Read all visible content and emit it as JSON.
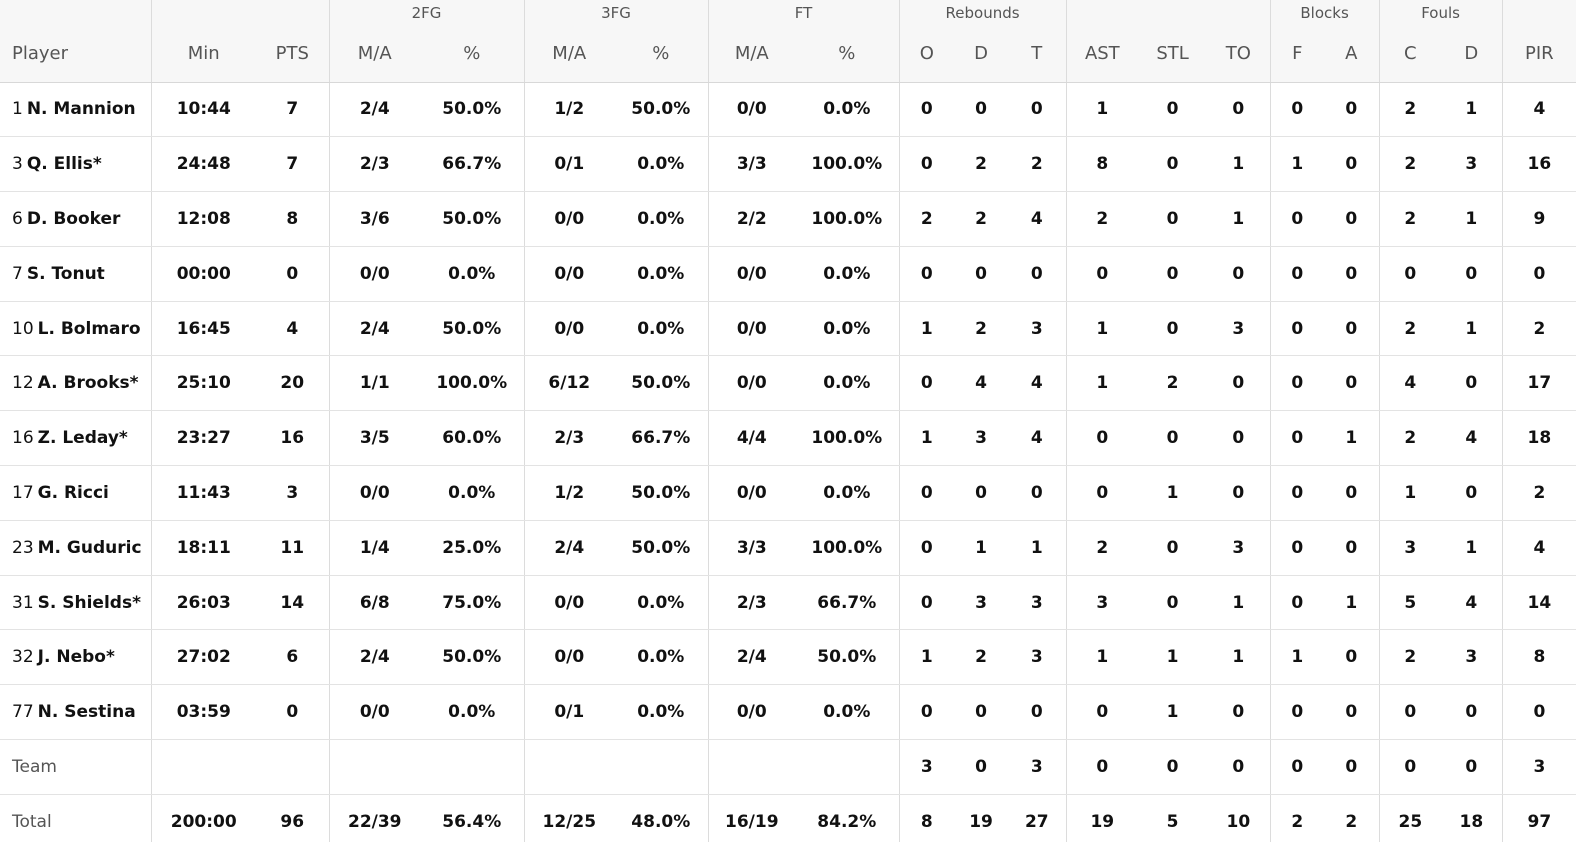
{
  "groups": {
    "twofg": "2FG",
    "threefg": "3FG",
    "ft": "FT",
    "rebounds": "Rebounds",
    "blocks": "Blocks",
    "fouls": "Fouls"
  },
  "columns": {
    "player": "Player",
    "min": "Min",
    "pts": "PTS",
    "twofg_ma": "M/A",
    "twofg_pct": "%",
    "threefg_ma": "M/A",
    "threefg_pct": "%",
    "ft_ma": "M/A",
    "ft_pct": "%",
    "reb_o": "O",
    "reb_d": "D",
    "reb_t": "T",
    "ast": "AST",
    "stl": "STL",
    "to": "TO",
    "blk_f": "F",
    "blk_a": "A",
    "fouls_c": "C",
    "fouls_d": "D",
    "pir": "PIR"
  },
  "players": [
    {
      "num": "1",
      "name": "N. Mannion",
      "min": "10:44",
      "pts": "7",
      "twofg_ma": "2/4",
      "twofg_pct": "50.0%",
      "threefg_ma": "1/2",
      "threefg_pct": "50.0%",
      "ft_ma": "0/0",
      "ft_pct": "0.0%",
      "reb_o": "0",
      "reb_d": "0",
      "reb_t": "0",
      "ast": "1",
      "stl": "0",
      "to": "0",
      "blk_f": "0",
      "blk_a": "0",
      "fouls_c": "2",
      "fouls_d": "1",
      "pir": "4"
    },
    {
      "num": "3",
      "name": "Q. Ellis*",
      "min": "24:48",
      "pts": "7",
      "twofg_ma": "2/3",
      "twofg_pct": "66.7%",
      "threefg_ma": "0/1",
      "threefg_pct": "0.0%",
      "ft_ma": "3/3",
      "ft_pct": "100.0%",
      "reb_o": "0",
      "reb_d": "2",
      "reb_t": "2",
      "ast": "8",
      "stl": "0",
      "to": "1",
      "blk_f": "1",
      "blk_a": "0",
      "fouls_c": "2",
      "fouls_d": "3",
      "pir": "16"
    },
    {
      "num": "6",
      "name": "D. Booker",
      "min": "12:08",
      "pts": "8",
      "twofg_ma": "3/6",
      "twofg_pct": "50.0%",
      "threefg_ma": "0/0",
      "threefg_pct": "0.0%",
      "ft_ma": "2/2",
      "ft_pct": "100.0%",
      "reb_o": "2",
      "reb_d": "2",
      "reb_t": "4",
      "ast": "2",
      "stl": "0",
      "to": "1",
      "blk_f": "0",
      "blk_a": "0",
      "fouls_c": "2",
      "fouls_d": "1",
      "pir": "9"
    },
    {
      "num": "7",
      "name": "S. Tonut",
      "min": "00:00",
      "pts": "0",
      "twofg_ma": "0/0",
      "twofg_pct": "0.0%",
      "threefg_ma": "0/0",
      "threefg_pct": "0.0%",
      "ft_ma": "0/0",
      "ft_pct": "0.0%",
      "reb_o": "0",
      "reb_d": "0",
      "reb_t": "0",
      "ast": "0",
      "stl": "0",
      "to": "0",
      "blk_f": "0",
      "blk_a": "0",
      "fouls_c": "0",
      "fouls_d": "0",
      "pir": "0"
    },
    {
      "num": "10",
      "name": "L. Bolmaro",
      "min": "16:45",
      "pts": "4",
      "twofg_ma": "2/4",
      "twofg_pct": "50.0%",
      "threefg_ma": "0/0",
      "threefg_pct": "0.0%",
      "ft_ma": "0/0",
      "ft_pct": "0.0%",
      "reb_o": "1",
      "reb_d": "2",
      "reb_t": "3",
      "ast": "1",
      "stl": "0",
      "to": "3",
      "blk_f": "0",
      "blk_a": "0",
      "fouls_c": "2",
      "fouls_d": "1",
      "pir": "2"
    },
    {
      "num": "12",
      "name": "A. Brooks*",
      "min": "25:10",
      "pts": "20",
      "twofg_ma": "1/1",
      "twofg_pct": "100.0%",
      "threefg_ma": "6/12",
      "threefg_pct": "50.0%",
      "ft_ma": "0/0",
      "ft_pct": "0.0%",
      "reb_o": "0",
      "reb_d": "4",
      "reb_t": "4",
      "ast": "1",
      "stl": "2",
      "to": "0",
      "blk_f": "0",
      "blk_a": "0",
      "fouls_c": "4",
      "fouls_d": "0",
      "pir": "17"
    },
    {
      "num": "16",
      "name": "Z. Leday*",
      "min": "23:27",
      "pts": "16",
      "twofg_ma": "3/5",
      "twofg_pct": "60.0%",
      "threefg_ma": "2/3",
      "threefg_pct": "66.7%",
      "ft_ma": "4/4",
      "ft_pct": "100.0%",
      "reb_o": "1",
      "reb_d": "3",
      "reb_t": "4",
      "ast": "0",
      "stl": "0",
      "to": "0",
      "blk_f": "0",
      "blk_a": "1",
      "fouls_c": "2",
      "fouls_d": "4",
      "pir": "18"
    },
    {
      "num": "17",
      "name": "G. Ricci",
      "min": "11:43",
      "pts": "3",
      "twofg_ma": "0/0",
      "twofg_pct": "0.0%",
      "threefg_ma": "1/2",
      "threefg_pct": "50.0%",
      "ft_ma": "0/0",
      "ft_pct": "0.0%",
      "reb_o": "0",
      "reb_d": "0",
      "reb_t": "0",
      "ast": "0",
      "stl": "1",
      "to": "0",
      "blk_f": "0",
      "blk_a": "0",
      "fouls_c": "1",
      "fouls_d": "0",
      "pir": "2"
    },
    {
      "num": "23",
      "name": "M. Guduric",
      "min": "18:11",
      "pts": "11",
      "twofg_ma": "1/4",
      "twofg_pct": "25.0%",
      "threefg_ma": "2/4",
      "threefg_pct": "50.0%",
      "ft_ma": "3/3",
      "ft_pct": "100.0%",
      "reb_o": "0",
      "reb_d": "1",
      "reb_t": "1",
      "ast": "2",
      "stl": "0",
      "to": "3",
      "blk_f": "0",
      "blk_a": "0",
      "fouls_c": "3",
      "fouls_d": "1",
      "pir": "4"
    },
    {
      "num": "31",
      "name": "S. Shields*",
      "min": "26:03",
      "pts": "14",
      "twofg_ma": "6/8",
      "twofg_pct": "75.0%",
      "threefg_ma": "0/0",
      "threefg_pct": "0.0%",
      "ft_ma": "2/3",
      "ft_pct": "66.7%",
      "reb_o": "0",
      "reb_d": "3",
      "reb_t": "3",
      "ast": "3",
      "stl": "0",
      "to": "1",
      "blk_f": "0",
      "blk_a": "1",
      "fouls_c": "5",
      "fouls_d": "4",
      "pir": "14"
    },
    {
      "num": "32",
      "name": "J. Nebo*",
      "min": "27:02",
      "pts": "6",
      "twofg_ma": "2/4",
      "twofg_pct": "50.0%",
      "threefg_ma": "0/0",
      "threefg_pct": "0.0%",
      "ft_ma": "2/4",
      "ft_pct": "50.0%",
      "reb_o": "1",
      "reb_d": "2",
      "reb_t": "3",
      "ast": "1",
      "stl": "1",
      "to": "1",
      "blk_f": "1",
      "blk_a": "0",
      "fouls_c": "2",
      "fouls_d": "3",
      "pir": "8"
    },
    {
      "num": "77",
      "name": "N. Sestina",
      "min": "03:59",
      "pts": "0",
      "twofg_ma": "0/0",
      "twofg_pct": "0.0%",
      "threefg_ma": "0/1",
      "threefg_pct": "0.0%",
      "ft_ma": "0/0",
      "ft_pct": "0.0%",
      "reb_o": "0",
      "reb_d": "0",
      "reb_t": "0",
      "ast": "0",
      "stl": "1",
      "to": "0",
      "blk_f": "0",
      "blk_a": "0",
      "fouls_c": "0",
      "fouls_d": "0",
      "pir": "0"
    }
  ],
  "team": {
    "label": "Team",
    "min": "",
    "pts": "",
    "twofg_ma": "",
    "twofg_pct": "",
    "threefg_ma": "",
    "threefg_pct": "",
    "ft_ma": "",
    "ft_pct": "",
    "reb_o": "3",
    "reb_d": "0",
    "reb_t": "3",
    "ast": "0",
    "stl": "0",
    "to": "0",
    "blk_f": "0",
    "blk_a": "0",
    "fouls_c": "0",
    "fouls_d": "0",
    "pir": "3"
  },
  "total": {
    "label": "Total",
    "min": "200:00",
    "pts": "96",
    "twofg_ma": "22/39",
    "twofg_pct": "56.4%",
    "threefg_ma": "12/25",
    "threefg_pct": "48.0%",
    "ft_ma": "16/19",
    "ft_pct": "84.2%",
    "reb_o": "8",
    "reb_d": "19",
    "reb_t": "27",
    "ast": "19",
    "stl": "5",
    "to": "10",
    "blk_f": "2",
    "blk_a": "2",
    "fouls_c": "25",
    "fouls_d": "18",
    "pir": "97"
  }
}
